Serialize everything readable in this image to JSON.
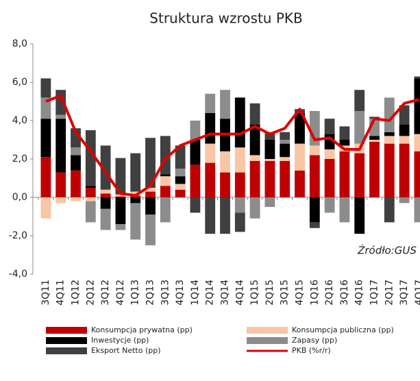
{
  "chart_data": {
    "type": "bar",
    "stacked": true,
    "title": "Struktura wzrostu PKB",
    "annotation": "Źródło:GUS",
    "categories": [
      "3Q11",
      "4Q11",
      "1Q12",
      "2Q12",
      "3Q12",
      "4Q12",
      "1Q13",
      "2Q13",
      "3Q13",
      "4Q13",
      "1Q14",
      "2Q14",
      "3Q14",
      "4Q14",
      "1Q15",
      "2Q15",
      "3Q15",
      "4Q15",
      "1Q16",
      "2Q16",
      "3Q16",
      "4Q16",
      "1Q17",
      "2Q17",
      "3Q17",
      "4Q17"
    ],
    "series": [
      {
        "name": "Konsumpcja prywatna (pp)",
        "color": "#c00000",
        "values": [
          2.1,
          1.3,
          1.4,
          0.5,
          0.2,
          0.05,
          0.1,
          0.3,
          0.6,
          0.4,
          1.7,
          1.8,
          1.3,
          1.3,
          1.9,
          1.9,
          1.9,
          1.4,
          2.2,
          2.0,
          2.4,
          2.3,
          2.9,
          2.8,
          2.8,
          2.4
        ]
      },
      {
        "name": "Konsumpcja publiczna (pp)",
        "color": "#f8c5a5",
        "values": [
          -1.1,
          -0.3,
          -0.2,
          -0.2,
          0.2,
          0.1,
          0.2,
          0.2,
          0.5,
          0.3,
          0,
          1.0,
          1.1,
          1.3,
          0.3,
          0.1,
          0.2,
          1.4,
          0.5,
          0.5,
          0.3,
          0.5,
          0.1,
          0.4,
          0.4,
          0.9
        ]
      },
      {
        "name": "Inwestycje (pp)",
        "color": "#000000",
        "values": [
          2.0,
          2.8,
          0.8,
          0.1,
          -0.6,
          -1.4,
          -0.3,
          -0.9,
          0.1,
          0.4,
          1.3,
          1.6,
          1.7,
          2.6,
          1.6,
          1.0,
          0.7,
          1.6,
          -1.3,
          0.8,
          0.3,
          -1.9,
          0.2,
          0.2,
          0.6,
          2.9
        ]
      },
      {
        "name": "Zapasy (pp)",
        "color": "#8c8c8c",
        "values": [
          1.1,
          0.2,
          0.4,
          -1.1,
          -1.1,
          -0.3,
          -1.9,
          -1.6,
          -1.3,
          0.4,
          1.0,
          1.0,
          1.5,
          -0.8,
          -1.1,
          -0.5,
          0.2,
          0.0,
          1.8,
          -0.8,
          -1.3,
          1.7,
          0.9,
          1.8,
          -0.3,
          -1.3
        ]
      },
      {
        "name": "Eksport Netto (pp)",
        "color": "#404040",
        "values": [
          1.0,
          1.3,
          1.0,
          2.9,
          2.3,
          1.9,
          2.0,
          2.6,
          2.0,
          1.2,
          -0.8,
          -1.9,
          -1.9,
          -1.0,
          1.1,
          0.4,
          0.4,
          0.2,
          -0.3,
          0.8,
          0.7,
          1.1,
          0.1,
          -1.3,
          1.0,
          0.1
        ]
      },
      {
        "name": "PKB (%r/r)",
        "color": "#e00000",
        "type": "line",
        "values": [
          5.0,
          5.3,
          3.4,
          2.4,
          1.3,
          0.2,
          0.1,
          0.6,
          2.0,
          2.7,
          3.0,
          3.3,
          3.3,
          3.3,
          3.7,
          3.3,
          3.6,
          4.6,
          3.0,
          3.1,
          2.5,
          2.5,
          4.1,
          4.0,
          4.9,
          5.1
        ]
      }
    ],
    "ylim": [
      -4,
      8
    ],
    "yticks": [
      {
        "value": -4,
        "label": "-4,0"
      },
      {
        "value": -2,
        "label": "-2,0"
      },
      {
        "value": 0,
        "label": "0,0"
      },
      {
        "value": 2,
        "label": "2,0"
      },
      {
        "value": 4,
        "label": "4,0"
      },
      {
        "value": 6,
        "label": "6,0"
      },
      {
        "value": 8,
        "label": "8,0"
      }
    ]
  }
}
